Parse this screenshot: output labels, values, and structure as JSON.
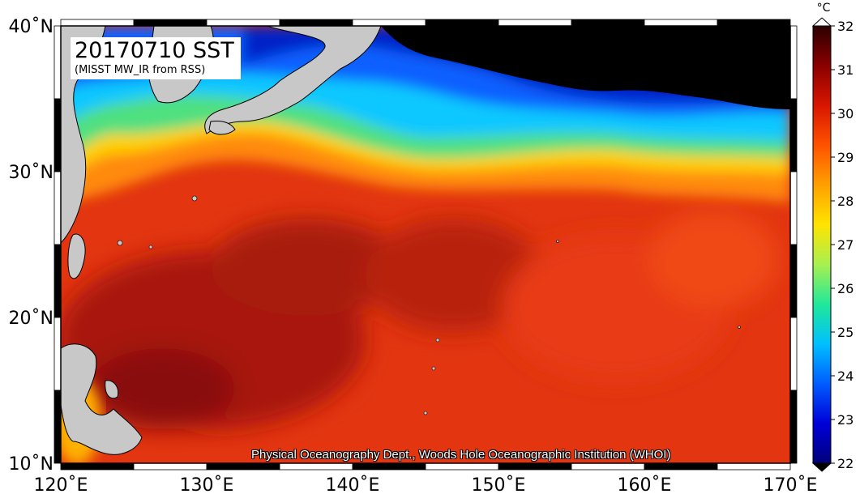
{
  "title": "20170710 SST",
  "subtitle": "(MISST MW_IR from RSS)",
  "credit": "Physical Oceanography Dept., Woods Hole Oceanographic Institution (WHOI)",
  "colorbar": {
    "unit": "°C",
    "min": 22,
    "max": 32,
    "ticks": [
      "22",
      "23",
      "24",
      "25",
      "26",
      "27",
      "28",
      "29",
      "30",
      "31",
      "32"
    ],
    "stops": [
      "#00007a",
      "#0000d8",
      "#005cff",
      "#00c0ff",
      "#20e89a",
      "#a8f050",
      "#ffe400",
      "#ffa000",
      "#ff5200",
      "#d81600",
      "#8a0000",
      "#2a0000"
    ]
  },
  "axes": {
    "lon_ticks": [
      "120˚E",
      "130˚E",
      "140˚E",
      "150˚E",
      "160˚E",
      "170˚E"
    ],
    "lat_ticks": [
      "40˚N",
      "30˚N",
      "20˚N",
      "10˚N"
    ],
    "lon_range": [
      120,
      170
    ],
    "lat_range": [
      10,
      40
    ]
  },
  "colors": {
    "land": "#c8c8c8",
    "ice_or_nodata": "#000000",
    "warm_ocean": "#e03010",
    "hot_ocean": "#8c1008"
  }
}
